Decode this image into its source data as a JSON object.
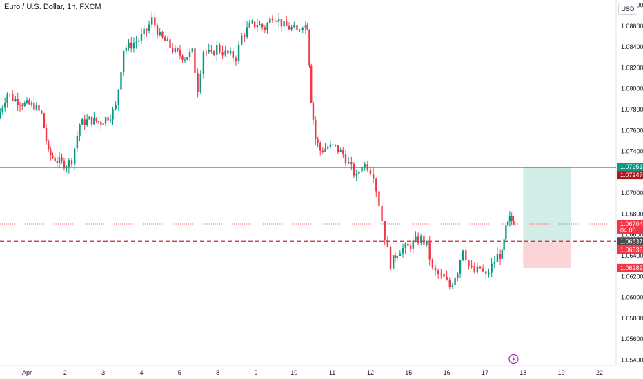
{
  "header": {
    "title": "Euro / U.S. Dollar, 1h, FXCM",
    "currency": "USD"
  },
  "chart_data": {
    "type": "candlestick",
    "title": "Euro / U.S. Dollar, 1h, FXCM",
    "ylim": [
      1.0535,
      1.0885
    ],
    "y_ticks": [
      "1.08800",
      "1.08600",
      "1.08400",
      "1.08200",
      "1.08000",
      "1.07800",
      "1.07600",
      "1.07400",
      "1.07200",
      "1.07000",
      "1.06800",
      "1.06600",
      "1.06400",
      "1.06200",
      "1.06000",
      "1.05800",
      "1.05600",
      "1.05400"
    ],
    "x_ticks": [
      {
        "label": "Apr",
        "pos": 0
      },
      {
        "label": "2",
        "pos": 1
      },
      {
        "label": "3",
        "pos": 2
      },
      {
        "label": "4",
        "pos": 3
      },
      {
        "label": "5",
        "pos": 4
      },
      {
        "label": "8",
        "pos": 5
      },
      {
        "label": "9",
        "pos": 6
      },
      {
        "label": "10",
        "pos": 7
      },
      {
        "label": "11",
        "pos": 8
      },
      {
        "label": "12",
        "pos": 9
      },
      {
        "label": "15",
        "pos": 10
      },
      {
        "label": "16",
        "pos": 11
      },
      {
        "label": "17",
        "pos": 12
      },
      {
        "label": "18",
        "pos": 13
      },
      {
        "label": "19",
        "pos": 14
      },
      {
        "label": "22",
        "pos": 15
      }
    ],
    "series": [
      {
        "name": "",
        "interval": "1h",
        "close_path": [
          [
            -0.7,
            1.0772
          ],
          [
            -0.45,
            1.0796
          ],
          [
            -0.3,
            1.0791
          ],
          [
            0.0,
            1.0785
          ],
          [
            0.25,
            1.0784
          ],
          [
            0.45,
            1.0775
          ],
          [
            0.62,
            1.0738
          ],
          [
            0.85,
            1.0731
          ],
          [
            1.1,
            1.0727
          ],
          [
            1.25,
            1.0732
          ],
          [
            1.45,
            1.0766
          ],
          [
            1.7,
            1.077
          ],
          [
            2.0,
            1.0768
          ],
          [
            2.25,
            1.0775
          ],
          [
            2.4,
            1.0782
          ],
          [
            2.6,
            1.0838
          ],
          [
            2.8,
            1.0842
          ],
          [
            3.0,
            1.0847
          ],
          [
            3.2,
            1.0856
          ],
          [
            3.35,
            1.0866
          ],
          [
            3.55,
            1.085
          ],
          [
            3.75,
            1.0843
          ],
          [
            3.95,
            1.0835
          ],
          [
            4.2,
            1.083
          ],
          [
            4.4,
            1.0835
          ],
          [
            4.55,
            1.08
          ],
          [
            4.7,
            1.0837
          ],
          [
            4.9,
            1.0832
          ],
          [
            5.05,
            1.084
          ],
          [
            5.2,
            1.0835
          ],
          [
            5.4,
            1.0832
          ],
          [
            5.55,
            1.083
          ],
          [
            5.7,
            1.085
          ],
          [
            5.9,
            1.086
          ],
          [
            6.1,
            1.0862
          ],
          [
            6.3,
            1.0858
          ],
          [
            6.5,
            1.087
          ],
          [
            6.6,
            1.0868
          ],
          [
            6.8,
            1.086
          ],
          [
            7.0,
            1.0858
          ],
          [
            7.15,
            1.0855
          ],
          [
            7.3,
            1.0862
          ],
          [
            7.4,
            1.086
          ],
          [
            7.5,
            1.079
          ],
          [
            7.62,
            1.0752
          ],
          [
            7.75,
            1.0741
          ],
          [
            7.95,
            1.0744
          ],
          [
            8.15,
            1.0744
          ],
          [
            8.35,
            1.0737
          ],
          [
            8.5,
            1.0728
          ],
          [
            8.7,
            1.0715
          ],
          [
            8.85,
            1.0728
          ],
          [
            9.0,
            1.0726
          ],
          [
            9.15,
            1.0718
          ],
          [
            9.3,
            1.069
          ],
          [
            9.45,
            1.0658
          ],
          [
            9.6,
            1.0632
          ],
          [
            9.7,
            1.064
          ],
          [
            9.85,
            1.0646
          ],
          [
            10.05,
            1.0648
          ],
          [
            10.25,
            1.0654
          ],
          [
            10.4,
            1.0656
          ],
          [
            10.55,
            1.065
          ],
          [
            10.7,
            1.0626
          ],
          [
            10.85,
            1.0622
          ],
          [
            11.0,
            1.0618
          ],
          [
            11.15,
            1.061
          ],
          [
            11.35,
            1.0626
          ],
          [
            11.5,
            1.0648
          ],
          [
            11.65,
            1.063
          ],
          [
            11.8,
            1.0624
          ],
          [
            11.95,
            1.0628
          ],
          [
            12.1,
            1.062
          ],
          [
            12.25,
            1.063
          ],
          [
            12.4,
            1.064
          ],
          [
            12.5,
            1.0641
          ],
          [
            12.6,
            1.0665
          ],
          [
            12.7,
            1.0675
          ],
          [
            12.8,
            1.0672
          ]
        ]
      }
    ],
    "levels": {
      "resistance": 1.07247,
      "entry": 1.06537,
      "last_price": 1.06704,
      "dotted_price": 1.06704,
      "take_profit": 1.07251,
      "stop_loss": 1.06282,
      "entry_label": 1.06536
    },
    "position_box": {
      "x_start": 13.0,
      "x_end": 14.25,
      "entry": 1.06537,
      "target": 1.07251,
      "stop": 1.06282
    },
    "price_tags": [
      {
        "label": "1.07251",
        "value": 1.07251,
        "color": "#089981"
      },
      {
        "label": "1.07247",
        "value": 1.07247,
        "color": "#b2161c"
      },
      {
        "label": "1.06704",
        "value": 1.06704,
        "color": "#f23645",
        "sub": "04:00"
      },
      {
        "label": "1.06537",
        "value": 1.06537,
        "color": "#4a4a4a"
      },
      {
        "label": "1.06536",
        "value": 1.06536,
        "color": "#f23645"
      },
      {
        "label": "1.06282",
        "value": 1.06282,
        "color": "#f23645"
      }
    ],
    "colors": {
      "up": "#089981",
      "down": "#f23645",
      "resistance": "#b2161c",
      "profit_zone": "#d2ede7",
      "loss_zone": "#fbd4d7"
    },
    "grid": false,
    "marker_icon": "lightning-icon"
  }
}
